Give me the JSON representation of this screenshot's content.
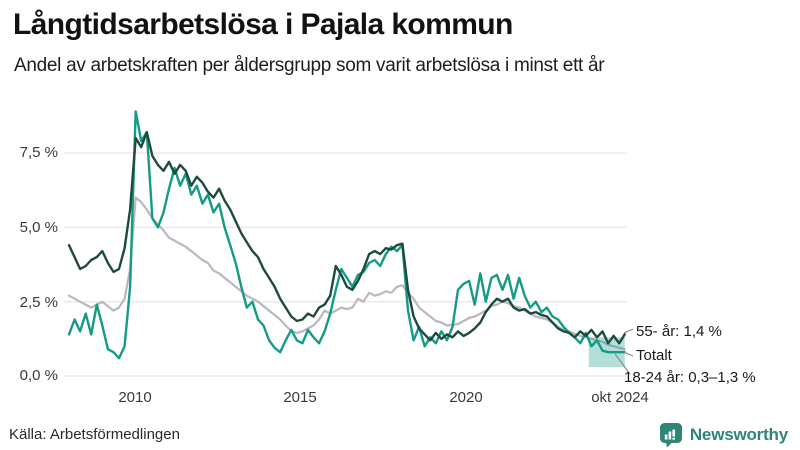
{
  "chart_data": {
    "type": "line",
    "title": "Långtidsarbetslösa i Pajala kommun",
    "subtitle": "Andel av arbetskraften per åldersgrupp som varit arbetslösa i minst ett år",
    "x_unit": "year",
    "x_start": 2008.0,
    "x_end": 2024.79,
    "ylim": [
      0,
      9.3
    ],
    "grid": true,
    "y_ticks": [
      {
        "value": 7.5,
        "label": "7,5 %"
      },
      {
        "value": 5.0,
        "label": "5,0 %"
      },
      {
        "value": 2.5,
        "label": "2,5 %"
      },
      {
        "value": 0.0,
        "label": "0,0 %"
      }
    ],
    "x_ticks": [
      {
        "value": 2010,
        "label": "2010"
      },
      {
        "value": 2015,
        "label": "2015"
      },
      {
        "value": 2020,
        "label": "2020"
      },
      {
        "value": 2024.79,
        "label": "okt 2024"
      }
    ],
    "series": [
      {
        "name": "55- år",
        "color": "#1d4b3e",
        "end_value_label": "1,4 %",
        "values": [
          4.4,
          4.0,
          3.6,
          3.7,
          3.9,
          4.0,
          4.2,
          3.8,
          3.5,
          3.6,
          4.3,
          5.6,
          8.0,
          7.7,
          8.2,
          7.4,
          7.1,
          6.9,
          7.2,
          6.8,
          7.1,
          6.9,
          6.4,
          6.7,
          6.5,
          6.2,
          6.0,
          6.3,
          5.9,
          5.6,
          5.2,
          4.8,
          4.5,
          4.2,
          4.0,
          3.6,
          3.3,
          3.0,
          2.6,
          2.3,
          2.0,
          1.85,
          1.9,
          2.1,
          2.0,
          2.3,
          2.4,
          2.7,
          3.7,
          3.4,
          3.0,
          2.9,
          3.2,
          3.6,
          4.1,
          4.2,
          4.1,
          4.3,
          4.25,
          4.4,
          4.45,
          2.9,
          2.0,
          1.6,
          1.4,
          1.2,
          1.45,
          1.25,
          1.4,
          1.3,
          1.5,
          1.35,
          1.45,
          1.6,
          1.8,
          2.15,
          2.4,
          2.6,
          2.5,
          2.6,
          2.3,
          2.2,
          2.25,
          2.1,
          2.15,
          2.05,
          2.0,
          1.8,
          1.6,
          1.5,
          1.45,
          1.3,
          1.5,
          1.35,
          1.55,
          1.3,
          1.5,
          1.1,
          1.35,
          1.1,
          1.4
        ]
      },
      {
        "name": "Totalt",
        "color": "#bab7c3",
        "end_value_label": "0,9 %",
        "values": [
          2.7,
          2.6,
          2.5,
          2.4,
          2.3,
          2.4,
          2.5,
          2.35,
          2.2,
          2.3,
          2.6,
          3.6,
          6.0,
          5.85,
          5.6,
          5.3,
          5.1,
          4.9,
          4.65,
          4.55,
          4.45,
          4.35,
          4.2,
          4.05,
          3.9,
          3.8,
          3.55,
          3.45,
          3.3,
          3.15,
          3.0,
          2.85,
          2.7,
          2.6,
          2.5,
          2.35,
          2.2,
          2.05,
          1.9,
          1.7,
          1.5,
          1.45,
          1.5,
          1.6,
          1.7,
          1.9,
          2.2,
          2.1,
          2.2,
          2.3,
          2.25,
          2.3,
          2.6,
          2.5,
          2.8,
          2.7,
          2.75,
          2.85,
          2.8,
          3.0,
          3.05,
          2.8,
          2.6,
          2.3,
          2.15,
          2.0,
          1.85,
          1.8,
          1.7,
          1.72,
          1.75,
          1.85,
          1.95,
          2.0,
          2.1,
          2.2,
          2.35,
          2.4,
          2.5,
          2.45,
          2.35,
          2.3,
          2.2,
          2.1,
          2.0,
          1.95,
          1.9,
          1.8,
          1.65,
          1.55,
          1.5,
          1.42,
          1.35,
          1.3,
          1.25,
          1.2,
          1.15,
          1.05,
          1.0,
          0.95,
          0.9
        ]
      },
      {
        "name": "18-24 år",
        "color": "#149b85",
        "end_value_label": "0,3–1,3 %",
        "values": [
          1.4,
          1.9,
          1.5,
          2.1,
          1.4,
          2.4,
          1.7,
          0.9,
          0.8,
          0.6,
          1.0,
          3.0,
          8.9,
          7.9,
          8.2,
          5.3,
          5.0,
          5.5,
          6.3,
          7.0,
          6.4,
          6.8,
          6.1,
          6.4,
          5.8,
          6.1,
          5.5,
          5.8,
          5.0,
          4.4,
          3.8,
          3.0,
          2.3,
          2.5,
          1.9,
          1.7,
          1.2,
          0.95,
          0.8,
          1.2,
          1.55,
          1.2,
          1.1,
          1.55,
          1.3,
          1.1,
          1.5,
          2.1,
          2.9,
          3.6,
          3.3,
          3.0,
          3.4,
          3.5,
          3.8,
          3.9,
          3.7,
          4.1,
          4.35,
          4.2,
          4.4,
          2.2,
          1.2,
          1.65,
          1.0,
          1.3,
          1.1,
          1.5,
          1.2,
          1.65,
          2.9,
          3.1,
          3.2,
          2.4,
          3.45,
          2.5,
          3.3,
          3.4,
          2.9,
          3.4,
          2.6,
          3.3,
          2.7,
          2.3,
          2.5,
          2.15,
          2.3,
          2.0,
          1.9,
          1.65,
          1.45,
          1.3,
          1.1,
          1.45,
          1.0,
          1.2,
          0.85,
          0.8,
          0.8,
          0.8,
          0.8
        ]
      }
    ],
    "band": {
      "series": "18-24 år",
      "x_start": 2023.7,
      "x_end": 2024.79,
      "y_min": 0.3,
      "y_max": 1.3,
      "color": "#149b85",
      "opacity": 0.32
    },
    "annotations": [
      {
        "series": "55- år",
        "label": "55- år: 1,4 %"
      },
      {
        "series": "Totalt",
        "label": "Totalt"
      },
      {
        "series": "18-24 år",
        "label": "18-24 år: 0,3–1,3 %"
      }
    ],
    "colors": {
      "grid": "#e8e8ee",
      "leader": "#8a8a8a"
    },
    "legend_position": "right-end-labels"
  },
  "footer": {
    "source": "Källa: Arbetsförmedlingen",
    "brand": "Newsworthy"
  }
}
